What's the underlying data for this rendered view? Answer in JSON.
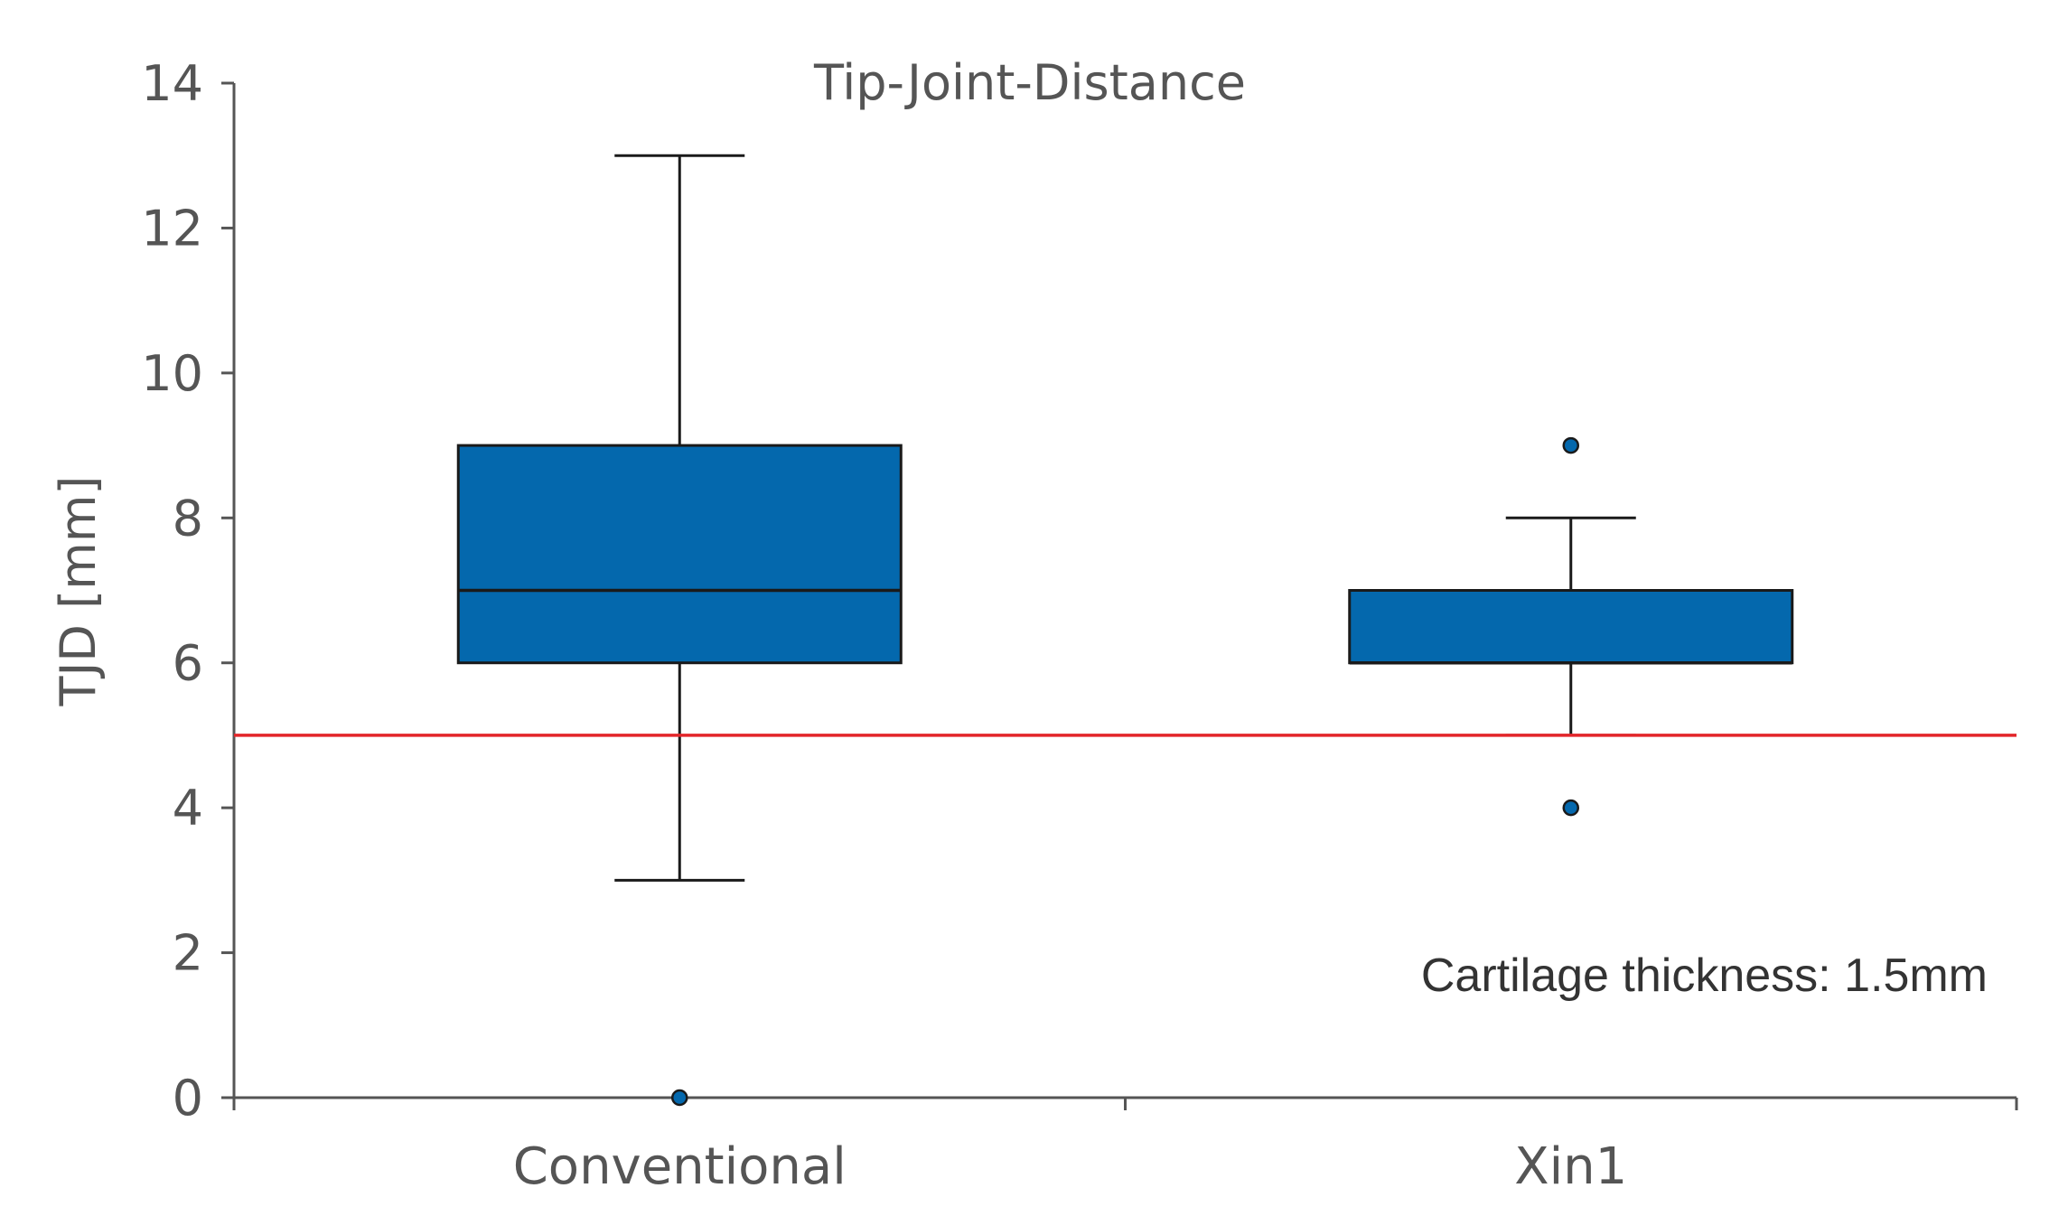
{
  "chart_data": {
    "type": "box",
    "title": "Tip-Joint-Distance",
    "ylabel": "TJD [mm]",
    "xlabel": "",
    "ylim": [
      0,
      14
    ],
    "yticks": [
      0,
      2,
      4,
      6,
      8,
      10,
      12,
      14
    ],
    "categories": [
      "Conventional",
      "Xin1"
    ],
    "boxes": [
      {
        "category": "Conventional",
        "whisker_low": 3,
        "q1": 6,
        "median": 7,
        "q3": 9,
        "whisker_high": 13,
        "outliers": [
          0
        ]
      },
      {
        "category": "Xin1",
        "whisker_low": 5,
        "q1": 6,
        "median": 6,
        "q3": 7,
        "whisker_high": 8,
        "outliers": [
          4,
          9
        ]
      }
    ],
    "reference_line": {
      "value": 5,
      "color": "#e3262a"
    },
    "annotation": "Cartilage thickness: 1.5mm",
    "colors": {
      "box_fill": "#0468ad",
      "box_stroke": "#1a1a1a",
      "axis": "#555555"
    },
    "grid": false,
    "legend": "none"
  }
}
